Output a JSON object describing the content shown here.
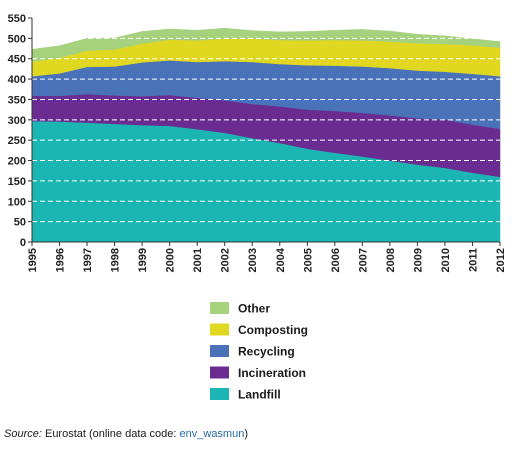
{
  "chart_data": {
    "type": "area",
    "stacked": true,
    "x": [
      "1995",
      "1996",
      "1997",
      "1998",
      "1999",
      "2000",
      "2001",
      "2002",
      "2003",
      "2004",
      "2005",
      "2006",
      "2007",
      "2008",
      "2009",
      "2010",
      "2011",
      "2012"
    ],
    "ylim": [
      0,
      550
    ],
    "yticks": [
      0,
      50,
      100,
      150,
      200,
      250,
      300,
      350,
      400,
      450,
      500,
      550
    ],
    "grid": true,
    "series": [
      {
        "name": "Landfill",
        "color": "#1bb6b3",
        "values": [
          297,
          296,
          293,
          290,
          287,
          285,
          277,
          268,
          255,
          243,
          229,
          219,
          210,
          200,
          190,
          182,
          170,
          160
        ]
      },
      {
        "name": "Incineration",
        "color": "#6b2c91",
        "values": [
          62,
          63,
          70,
          70,
          71,
          76,
          77,
          80,
          84,
          90,
          96,
          103,
          107,
          111,
          114,
          119,
          118,
          118
        ]
      },
      {
        "name": "Recycling",
        "color": "#4a72b9",
        "values": [
          48,
          55,
          67,
          71,
          83,
          85,
          88,
          96,
          103,
          104,
          109,
          111,
          114,
          116,
          117,
          117,
          125,
          129
        ]
      },
      {
        "name": "Composting",
        "color": "#e0d820",
        "values": [
          36,
          38,
          40,
          42,
          46,
          51,
          53,
          55,
          57,
          59,
          61,
          63,
          64,
          65,
          67,
          68,
          70,
          70
        ]
      },
      {
        "name": "Other",
        "color": "#a6d27e",
        "values": [
          30,
          30,
          30,
          28,
          30,
          26,
          25,
          26,
          20,
          20,
          22,
          24,
          27,
          26,
          22,
          20,
          16,
          15
        ]
      }
    ],
    "legend": [
      "Other",
      "Composting",
      "Recycling",
      "Incineration",
      "Landfill"
    ],
    "legend_position": "bottom"
  },
  "source": {
    "label": "Source:",
    "text": " Eurostat (online data code: ",
    "code": "env_wasmun",
    "close": ")"
  }
}
